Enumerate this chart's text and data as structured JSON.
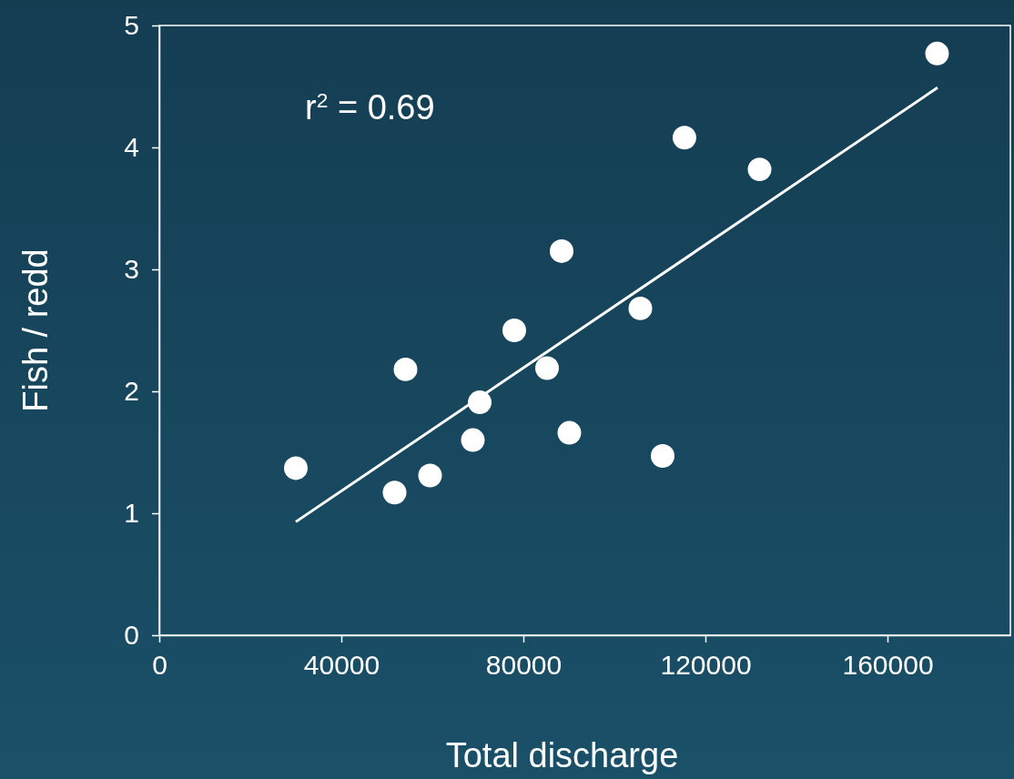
{
  "chart_data": {
    "type": "scatter",
    "xlabel": "Total discharge",
    "ylabel": "Fish / redd",
    "xlim": [
      0,
      187000
    ],
    "xticks": [
      0,
      40000,
      80000,
      120000,
      160000
    ],
    "ylim": [
      0,
      5
    ],
    "yticks": [
      0,
      1,
      2,
      3,
      4,
      5
    ],
    "marker": "circle",
    "grid": false,
    "annotations": [
      "r$^{2}$ = 0.69"
    ],
    "series": [
      {
        "color": "#ffffff",
        "x": [
          30000,
          51700,
          54100,
          59500,
          68900,
          70400,
          78000,
          85200,
          88400,
          90100,
          105700,
          110600,
          115400,
          131900,
          170900
        ],
        "values": [
          1.37,
          1.17,
          2.18,
          1.31,
          1.6,
          1.91,
          2.5,
          2.19,
          3.15,
          1.66,
          2.68,
          1.47,
          4.08,
          3.82,
          4.77
        ]
      },
      {
        "type": "line",
        "color": "#ffffff",
        "marker": "none",
        "line_style": "solid",
        "x": [
          30000,
          171000
        ],
        "values": [
          0.93,
          4.49
        ]
      }
    ]
  }
}
